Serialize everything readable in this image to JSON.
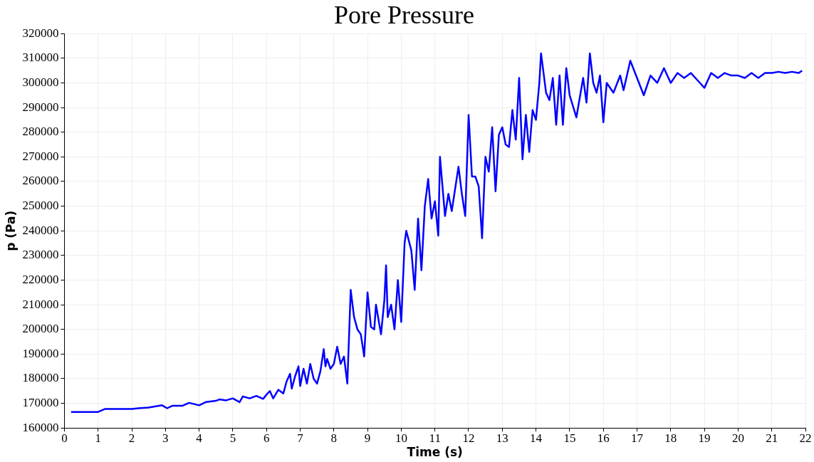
{
  "chart_data": {
    "type": "line",
    "title": "Pore Pressure",
    "xlabel": "Time (s)",
    "ylabel": "p (Pa)",
    "xlim": [
      0,
      22
    ],
    "xticks": [
      0,
      1,
      2,
      3,
      4,
      5,
      6,
      7,
      8,
      9,
      10,
      11,
      12,
      13,
      14,
      15,
      16,
      17,
      18,
      19,
      20,
      21,
      22
    ],
    "ylim": [
      160000,
      320000
    ],
    "yticks": [
      160000,
      170000,
      180000,
      190000,
      200000,
      210000,
      220000,
      230000,
      240000,
      250000,
      260000,
      270000,
      280000,
      290000,
      300000,
      310000,
      320000
    ],
    "grid": true,
    "legend": false,
    "marker": "none",
    "line_style": "solid",
    "series": [
      {
        "color": "#0000ff",
        "x": [
          0.2,
          1.0,
          1.2,
          2.0,
          2.2,
          2.5,
          2.9,
          3.05,
          3.2,
          3.5,
          3.7,
          4.0,
          4.2,
          4.5,
          4.6,
          4.8,
          5.0,
          5.2,
          5.3,
          5.5,
          5.7,
          5.9,
          6.0,
          6.1,
          6.2,
          6.35,
          6.5,
          6.6,
          6.7,
          6.75,
          6.85,
          6.95,
          7.0,
          7.1,
          7.2,
          7.3,
          7.4,
          7.5,
          7.6,
          7.7,
          7.75,
          7.8,
          7.9,
          8.0,
          8.1,
          8.2,
          8.3,
          8.4,
          8.5,
          8.6,
          8.7,
          8.8,
          8.9,
          9.0,
          9.1,
          9.2,
          9.25,
          9.4,
          9.5,
          9.55,
          9.6,
          9.7,
          9.8,
          9.9,
          10.0,
          10.1,
          10.15,
          10.3,
          10.4,
          10.5,
          10.6,
          10.7,
          10.8,
          10.9,
          11.0,
          11.1,
          11.15,
          11.3,
          11.4,
          11.5,
          11.7,
          11.8,
          11.9,
          12.0,
          12.1,
          12.2,
          12.3,
          12.4,
          12.5,
          12.6,
          12.7,
          12.8,
          12.9,
          13.0,
          13.1,
          13.2,
          13.3,
          13.4,
          13.5,
          13.6,
          13.7,
          13.8,
          13.9,
          14.0,
          14.1,
          14.15,
          14.3,
          14.4,
          14.5,
          14.6,
          14.7,
          14.8,
          14.9,
          15.0,
          15.2,
          15.4,
          15.5,
          15.6,
          15.7,
          15.8,
          15.9,
          16.0,
          16.1,
          16.3,
          16.5,
          16.6,
          16.8,
          17.0,
          17.2,
          17.4,
          17.6,
          17.8,
          18.0,
          18.2,
          18.4,
          18.6,
          18.8,
          19.0,
          19.2,
          19.4,
          19.6,
          19.8,
          20.0,
          20.2,
          20.4,
          20.6,
          20.8,
          21.0,
          21.2,
          21.4,
          21.6,
          21.8,
          21.9
        ],
        "values": [
          166500,
          166500,
          167700,
          167700,
          168000,
          168300,
          169200,
          168000,
          169000,
          169000,
          170200,
          169200,
          170500,
          171000,
          171600,
          171200,
          172000,
          170500,
          172800,
          172000,
          173000,
          171800,
          173500,
          175000,
          172000,
          175500,
          174000,
          179000,
          182000,
          176000,
          181000,
          185000,
          177000,
          184000,
          178000,
          186000,
          180000,
          178000,
          183000,
          192000,
          185000,
          188000,
          184000,
          186000,
          193000,
          186000,
          189000,
          178000,
          216000,
          205000,
          200000,
          198000,
          189000,
          215000,
          201000,
          200000,
          210000,
          198000,
          212000,
          226000,
          205000,
          210000,
          200000,
          220000,
          203000,
          235000,
          240000,
          232000,
          216000,
          245000,
          224000,
          250000,
          261000,
          245000,
          252000,
          238000,
          270000,
          246000,
          255000,
          248000,
          266000,
          255000,
          246000,
          287000,
          262000,
          262000,
          258000,
          237000,
          270000,
          264000,
          282000,
          256000,
          279000,
          282000,
          275000,
          274000,
          289000,
          277000,
          302000,
          269000,
          287000,
          272000,
          289000,
          285000,
          300000,
          312000,
          296000,
          293000,
          302000,
          283000,
          303000,
          283000,
          306000,
          295000,
          286000,
          302000,
          292000,
          312000,
          300000,
          296000,
          303000,
          284000,
          300000,
          296000,
          303000,
          297000,
          309000,
          302000,
          295000,
          303000,
          300000,
          306000,
          300000,
          304000,
          302000,
          304000,
          301000,
          298000,
          304000,
          302000,
          304000,
          303000,
          303000,
          302000,
          304000,
          302000,
          304000,
          304000,
          304500,
          304000,
          304500,
          304000,
          305000
        ]
      }
    ]
  }
}
